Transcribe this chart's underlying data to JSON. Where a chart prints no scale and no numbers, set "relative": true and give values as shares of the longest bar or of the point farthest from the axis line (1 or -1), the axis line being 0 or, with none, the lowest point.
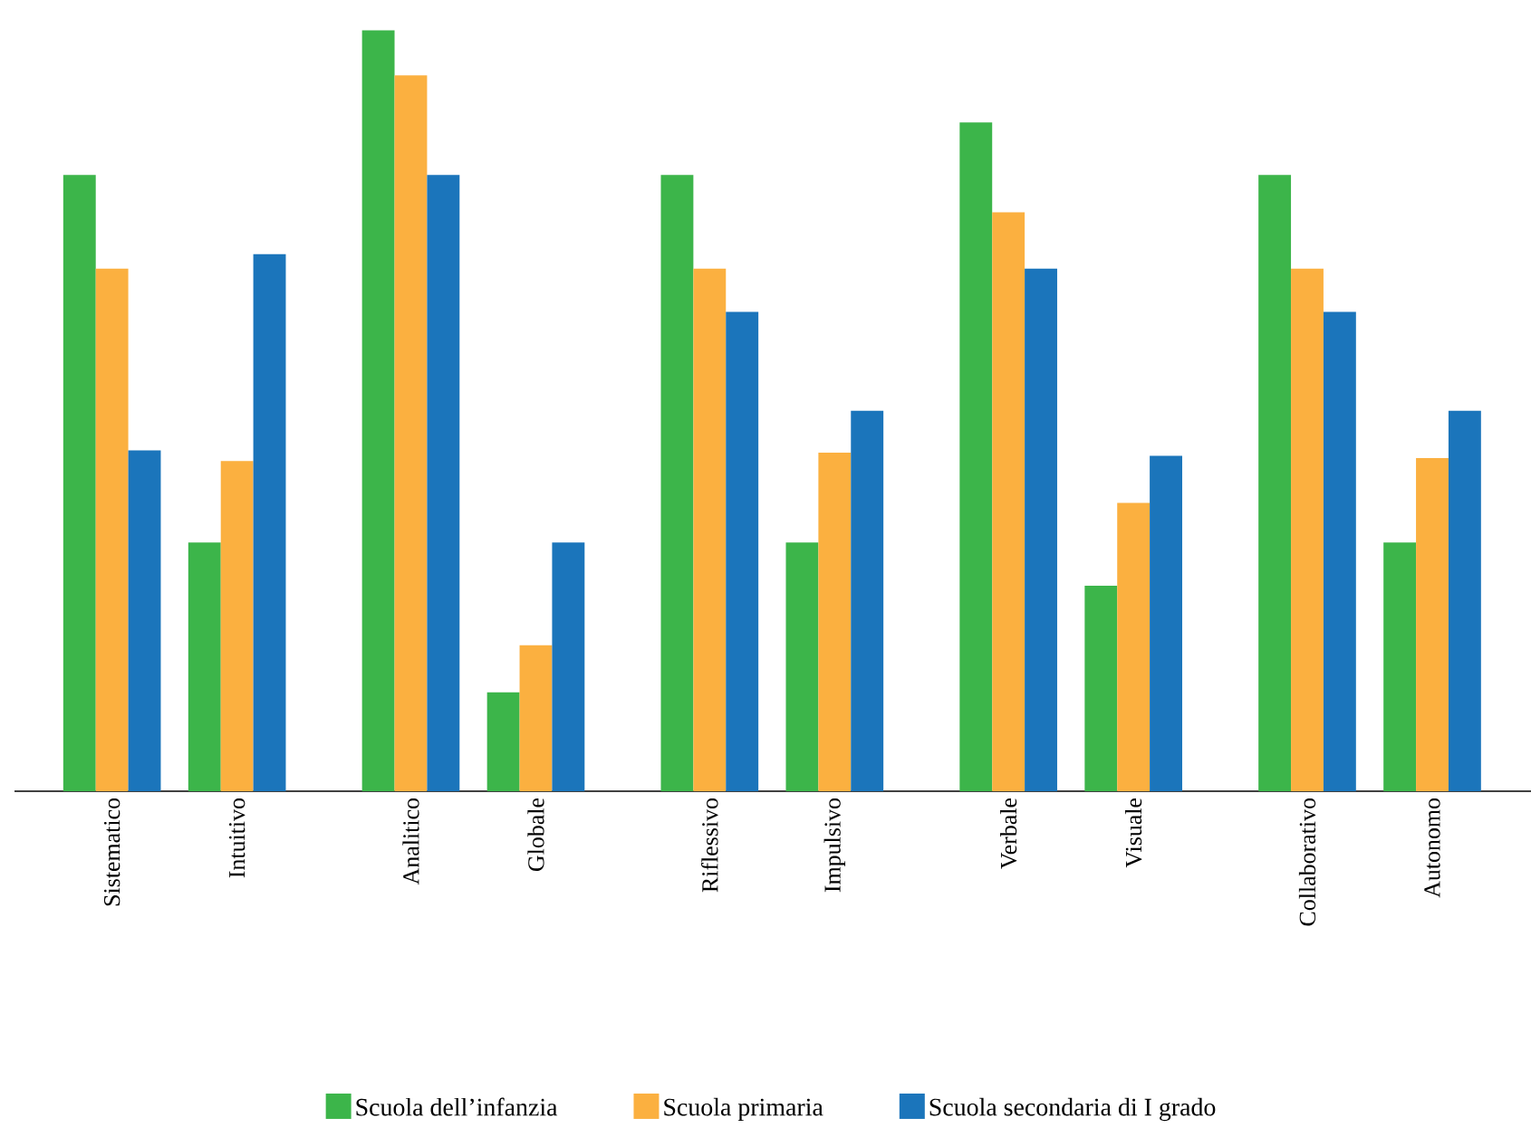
{
  "chart_data": {
    "type": "bar",
    "relative": true,
    "legend": "bottom",
    "categories": [
      "Sistematico",
      "Intuitivo",
      "Analitico",
      "Globale",
      "Riflessivo",
      "Impulsivo",
      "Verbale",
      "Visuale",
      "Collaborativo",
      "Autonomo"
    ],
    "series": [
      {
        "name": "Scuola dell’infanzia",
        "color": "#3cb54a",
        "values": [
          0.81,
          0.327,
          1,
          0.13,
          0.81,
          0.327,
          0.879,
          0.27,
          0.81,
          0.327
        ]
      },
      {
        "name": "Scuola primaria",
        "color": "#fbb040",
        "values": [
          0.687,
          0.434,
          0.941,
          0.192,
          0.687,
          0.445,
          0.761,
          0.379,
          0.687,
          0.438
        ]
      },
      {
        "name": "Scuola secondaria di I grado",
        "color": "#1b75bb",
        "values": [
          0.448,
          0.706,
          0.81,
          0.327,
          0.63,
          0.5,
          0.687,
          0.441,
          0.63,
          0.5
        ]
      }
    ]
  }
}
